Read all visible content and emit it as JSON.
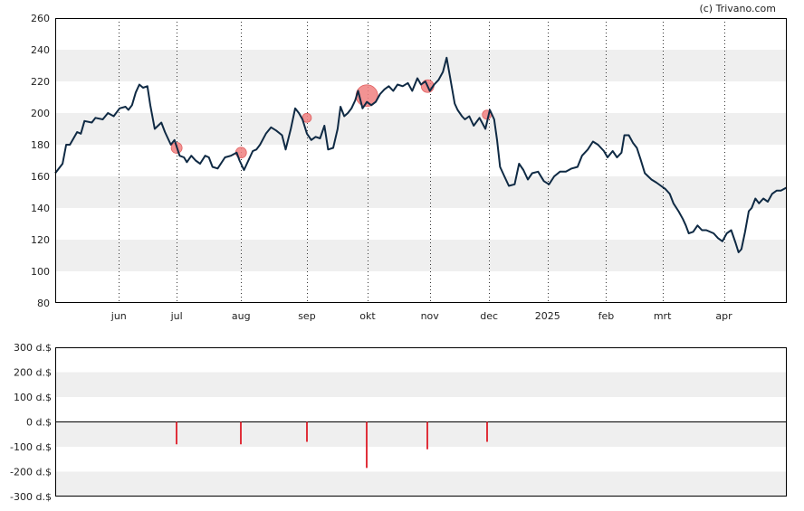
{
  "copyright": "(c) Trivano.com",
  "colors": {
    "line": "#0f2a44",
    "band": "#efefef",
    "marker": "#f08080",
    "bar": "#e0303a"
  },
  "chart_data": [
    {
      "type": "line",
      "title": "",
      "ylim": [
        80,
        260
      ],
      "yticks": [
        "80",
        "100",
        "120",
        "140",
        "160",
        "180",
        "200",
        "220",
        "240",
        "260"
      ],
      "xticks": [
        {
          "label": "jun",
          "t": 0.087
        },
        {
          "label": "jul",
          "t": 0.166
        },
        {
          "label": "aug",
          "t": 0.254
        },
        {
          "label": "sep",
          "t": 0.344
        },
        {
          "label": "okt",
          "t": 0.427
        },
        {
          "label": "nov",
          "t": 0.512
        },
        {
          "label": "dec",
          "t": 0.593
        },
        {
          "label": "2025",
          "t": 0.673
        },
        {
          "label": "feb",
          "t": 0.753
        },
        {
          "label": "mrt",
          "t": 0.83
        },
        {
          "label": "apr",
          "t": 0.914
        }
      ],
      "series": [
        {
          "values": [
            [
              0.0,
              162
            ],
            [
              0.01,
              168
            ],
            [
              0.015,
              180
            ],
            [
              0.02,
              180
            ],
            [
              0.03,
              188
            ],
            [
              0.035,
              187
            ],
            [
              0.04,
              195
            ],
            [
              0.05,
              194
            ],
            [
              0.055,
              197
            ],
            [
              0.065,
              196
            ],
            [
              0.072,
              200
            ],
            [
              0.08,
              198
            ],
            [
              0.088,
              203
            ],
            [
              0.096,
              204
            ],
            [
              0.1,
              202
            ],
            [
              0.105,
              205
            ],
            [
              0.11,
              213
            ],
            [
              0.115,
              218
            ],
            [
              0.12,
              216
            ],
            [
              0.126,
              217
            ],
            [
              0.13,
              205
            ],
            [
              0.136,
              190
            ],
            [
              0.145,
              194
            ],
            [
              0.15,
              188
            ],
            [
              0.158,
              180
            ],
            [
              0.163,
              183
            ],
            [
              0.17,
              173
            ],
            [
              0.176,
              172
            ],
            [
              0.18,
              169
            ],
            [
              0.186,
              173
            ],
            [
              0.192,
              170
            ],
            [
              0.198,
              168
            ],
            [
              0.205,
              173
            ],
            [
              0.21,
              172
            ],
            [
              0.215,
              166
            ],
            [
              0.222,
              165
            ],
            [
              0.232,
              172
            ],
            [
              0.24,
              173
            ],
            [
              0.248,
              175
            ],
            [
              0.252,
              170
            ],
            [
              0.258,
              164
            ],
            [
              0.262,
              168
            ],
            [
              0.27,
              176
            ],
            [
              0.275,
              177
            ],
            [
              0.28,
              180
            ],
            [
              0.288,
              187
            ],
            [
              0.295,
              191
            ],
            [
              0.302,
              189
            ],
            [
              0.31,
              186
            ],
            [
              0.315,
              177
            ],
            [
              0.322,
              190
            ],
            [
              0.328,
              203
            ],
            [
              0.333,
              200
            ],
            [
              0.338,
              196
            ],
            [
              0.344,
              187
            ],
            [
              0.35,
              183
            ],
            [
              0.356,
              185
            ],
            [
              0.362,
              184
            ],
            [
              0.368,
              192
            ],
            [
              0.373,
              177
            ],
            [
              0.38,
              178
            ],
            [
              0.386,
              190
            ],
            [
              0.39,
              204
            ],
            [
              0.395,
              198
            ],
            [
              0.4,
              200
            ],
            [
              0.405,
              203
            ],
            [
              0.41,
              208
            ],
            [
              0.414,
              214
            ],
            [
              0.42,
              203
            ],
            [
              0.426,
              207
            ],
            [
              0.432,
              205
            ],
            [
              0.438,
              207
            ],
            [
              0.444,
              212
            ],
            [
              0.45,
              215
            ],
            [
              0.456,
              217
            ],
            [
              0.462,
              214
            ],
            [
              0.468,
              218
            ],
            [
              0.475,
              217
            ],
            [
              0.482,
              219
            ],
            [
              0.488,
              214
            ],
            [
              0.495,
              222
            ],
            [
              0.5,
              218
            ],
            [
              0.506,
              220
            ],
            [
              0.512,
              214
            ],
            [
              0.518,
              218
            ],
            [
              0.524,
              221
            ],
            [
              0.53,
              226
            ],
            [
              0.535,
              235
            ],
            [
              0.54,
              222
            ],
            [
              0.546,
              206
            ],
            [
              0.55,
              202
            ],
            [
              0.556,
              198
            ],
            [
              0.56,
              196
            ],
            [
              0.566,
              198
            ],
            [
              0.572,
              192
            ],
            [
              0.58,
              197
            ],
            [
              0.588,
              190
            ],
            [
              0.594,
              202
            ],
            [
              0.6,
              196
            ],
            [
              0.604,
              183
            ],
            [
              0.608,
              166
            ],
            [
              0.614,
              160
            ],
            [
              0.62,
              154
            ],
            [
              0.628,
              155
            ],
            [
              0.634,
              168
            ],
            [
              0.64,
              164
            ],
            [
              0.646,
              158
            ],
            [
              0.652,
              162
            ],
            [
              0.66,
              163
            ],
            [
              0.668,
              157
            ],
            [
              0.675,
              155
            ],
            [
              0.682,
              160
            ],
            [
              0.69,
              163
            ],
            [
              0.698,
              163
            ],
            [
              0.706,
              165
            ],
            [
              0.714,
              166
            ],
            [
              0.72,
              173
            ],
            [
              0.728,
              177
            ],
            [
              0.735,
              182
            ],
            [
              0.742,
              180
            ],
            [
              0.75,
              176
            ],
            [
              0.755,
              172
            ],
            [
              0.762,
              176
            ],
            [
              0.768,
              172
            ],
            [
              0.774,
              175
            ],
            [
              0.778,
              186
            ],
            [
              0.784,
              186
            ],
            [
              0.79,
              181
            ],
            [
              0.795,
              178
            ],
            [
              0.8,
              171
            ],
            [
              0.806,
              162
            ],
            [
              0.815,
              158
            ],
            [
              0.822,
              156
            ],
            [
              0.828,
              154
            ],
            [
              0.834,
              152
            ],
            [
              0.84,
              149
            ],
            [
              0.845,
              143
            ],
            [
              0.852,
              138
            ],
            [
              0.858,
              133
            ],
            [
              0.862,
              129
            ],
            [
              0.866,
              124
            ],
            [
              0.872,
              125
            ],
            [
              0.878,
              129
            ],
            [
              0.884,
              126
            ],
            [
              0.89,
              126
            ],
            [
              0.9,
              124
            ],
            [
              0.906,
              121
            ],
            [
              0.912,
              119
            ],
            [
              0.918,
              124
            ],
            [
              0.924,
              126
            ],
            [
              0.93,
              118
            ],
            [
              0.934,
              112
            ],
            [
              0.938,
              114
            ],
            [
              0.943,
              125
            ],
            [
              0.948,
              138
            ],
            [
              0.952,
              140
            ],
            [
              0.957,
              146
            ],
            [
              0.962,
              143
            ],
            [
              0.968,
              146
            ],
            [
              0.974,
              144
            ],
            [
              0.98,
              149
            ],
            [
              0.986,
              151
            ],
            [
              0.992,
              151
            ],
            [
              1.0,
              153
            ]
          ]
        }
      ],
      "markers": [
        {
          "t": 0.166,
          "y": 178,
          "r": 6
        },
        {
          "t": 0.254,
          "y": 175,
          "r": 6
        },
        {
          "t": 0.344,
          "y": 197,
          "r": 5
        },
        {
          "t": 0.426,
          "y": 211,
          "r": 12
        },
        {
          "t": 0.509,
          "y": 217,
          "r": 7
        },
        {
          "t": 0.59,
          "y": 199,
          "r": 5
        }
      ]
    },
    {
      "type": "bar",
      "title": "",
      "ylim": [
        -300,
        300
      ],
      "yticks": [
        "300 d.$",
        "200 d.$",
        "100 d.$",
        "0 d.$",
        "-100 d.$",
        "-200 d.$",
        "-300 d.$"
      ],
      "bars": [
        {
          "t": 0.166,
          "value": -90
        },
        {
          "t": 0.254,
          "value": -90
        },
        {
          "t": 0.344,
          "value": -80
        },
        {
          "t": 0.426,
          "value": -185
        },
        {
          "t": 0.509,
          "value": -110
        },
        {
          "t": 0.59,
          "value": -80
        }
      ]
    }
  ]
}
